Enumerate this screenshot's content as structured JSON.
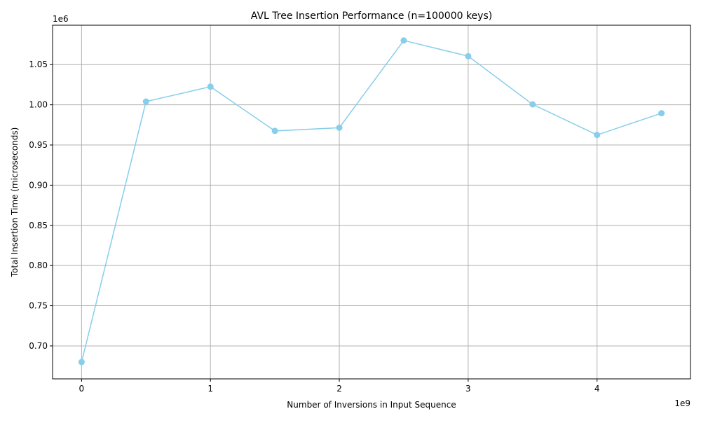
{
  "chart_data": {
    "type": "line",
    "title": "AVL Tree Insertion Performance (n=100000 keys)",
    "xlabel": "Number of Inversions in Input Sequence",
    "ylabel": "Total Insertion Time (microseconds)",
    "x_offset_label": "1e9",
    "y_offset_label": "1e6",
    "x_scale_factor": 1000000000,
    "y_scale_factor": 1000000,
    "xlim": [
      -225000000,
      4725000000
    ],
    "ylim": [
      659000,
      1099000
    ],
    "x_ticks": [
      0,
      1000000000,
      2000000000,
      3000000000,
      4000000000
    ],
    "x_tick_labels": [
      "0",
      "1",
      "2",
      "3",
      "4"
    ],
    "y_ticks": [
      700000,
      750000,
      800000,
      850000,
      900000,
      950000,
      1000000,
      1050000
    ],
    "y_tick_labels": [
      "0.70",
      "0.75",
      "0.80",
      "0.85",
      "0.90",
      "0.95",
      "1.00",
      "1.05"
    ],
    "grid": true,
    "series": [
      {
        "color": "#87ceeb",
        "x": [
          0,
          500000000,
          1000000000,
          1500000000,
          2000000000,
          2500000000,
          3000000000,
          3500000000,
          4000000000,
          4500000000
        ],
        "y": [
          680000,
          1004000,
          1022500,
          967500,
          971500,
          1080000,
          1060500,
          1000500,
          962500,
          989500
        ]
      }
    ]
  }
}
